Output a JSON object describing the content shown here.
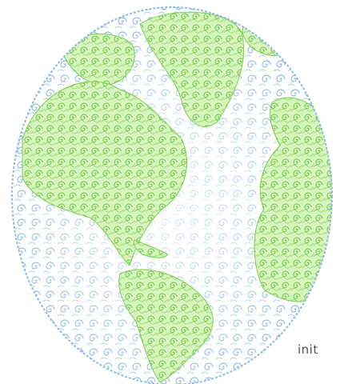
{
  "caption": {
    "text": "init"
  }
}
